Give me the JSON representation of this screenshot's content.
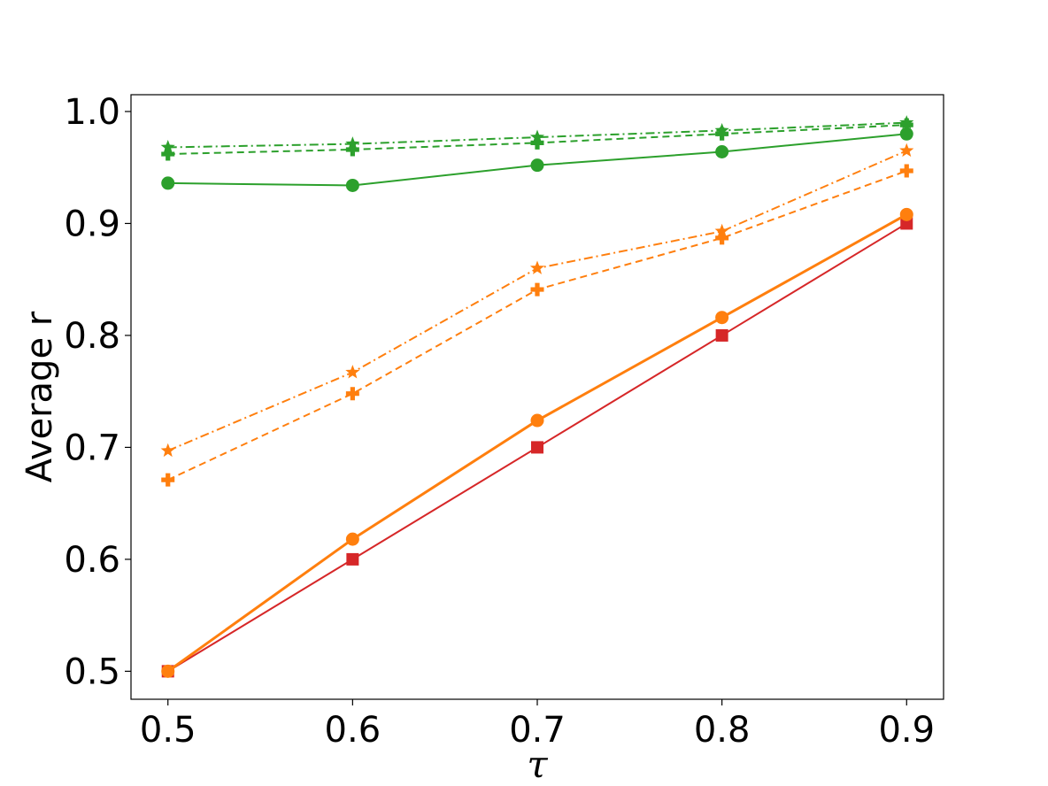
{
  "chart_data": {
    "type": "line",
    "title": "",
    "xlabel": "τ",
    "ylabel": "Average r",
    "x": [
      0.5,
      0.6,
      0.7,
      0.8,
      0.9
    ],
    "xticks": [
      "0.5",
      "0.6",
      "0.7",
      "0.8",
      "0.9"
    ],
    "yticks": [
      "0.5",
      "0.6",
      "0.7",
      "0.8",
      "0.9",
      "1.0"
    ],
    "xlim": [
      0.48,
      0.92
    ],
    "ylim": [
      0.475,
      1.015
    ],
    "grid": false,
    "legend": "none",
    "series": [
      {
        "color": "#d62728",
        "linestyle": "solid",
        "linewidth": 2,
        "marker": "square",
        "values": [
          0.5,
          0.6,
          0.7,
          0.8,
          0.9
        ]
      },
      {
        "color": "#ff7f0e",
        "linestyle": "solid",
        "linewidth": 3,
        "marker": "circle",
        "values": [
          0.5,
          0.618,
          0.724,
          0.816,
          0.908
        ]
      },
      {
        "color": "#ff7f0e",
        "linestyle": "dashed",
        "linewidth": 2,
        "marker": "plus",
        "values": [
          0.671,
          0.748,
          0.841,
          0.887,
          0.947
        ]
      },
      {
        "color": "#ff7f0e",
        "linestyle": "dashdot",
        "linewidth": 2,
        "marker": "star",
        "values": [
          0.697,
          0.767,
          0.86,
          0.893,
          0.965
        ]
      },
      {
        "color": "#2ca02c",
        "linestyle": "solid",
        "linewidth": 2,
        "marker": "circle",
        "values": [
          0.936,
          0.934,
          0.952,
          0.964,
          0.98
        ]
      },
      {
        "color": "#2ca02c",
        "linestyle": "dashed",
        "linewidth": 2,
        "marker": "plus",
        "values": [
          0.962,
          0.966,
          0.972,
          0.98,
          0.988
        ]
      },
      {
        "color": "#2ca02c",
        "linestyle": "dashdot",
        "linewidth": 2,
        "marker": "star",
        "values": [
          0.968,
          0.971,
          0.977,
          0.983,
          0.99
        ]
      }
    ]
  }
}
